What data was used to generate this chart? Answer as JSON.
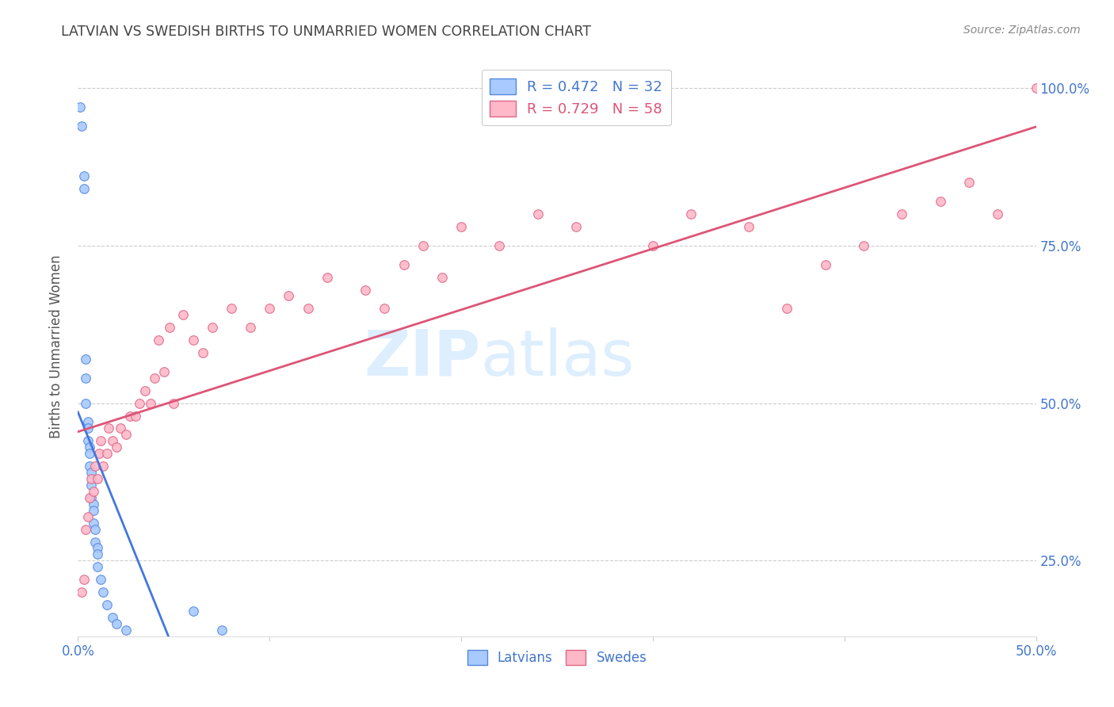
{
  "title": "LATVIAN VS SWEDISH BIRTHS TO UNMARRIED WOMEN CORRELATION CHART",
  "source": "Source: ZipAtlas.com",
  "ylabel": "Births to Unmarried Women",
  "xlim": [
    0.0,
    0.5
  ],
  "ylim": [
    0.13,
    1.05
  ],
  "latvian_x": [
    0.001,
    0.002,
    0.003,
    0.003,
    0.004,
    0.004,
    0.004,
    0.005,
    0.005,
    0.005,
    0.006,
    0.006,
    0.006,
    0.007,
    0.007,
    0.007,
    0.008,
    0.008,
    0.008,
    0.009,
    0.009,
    0.01,
    0.01,
    0.01,
    0.012,
    0.013,
    0.015,
    0.018,
    0.02,
    0.025,
    0.06,
    0.075
  ],
  "latvian_y": [
    0.97,
    0.94,
    0.86,
    0.84,
    0.57,
    0.54,
    0.5,
    0.47,
    0.46,
    0.44,
    0.43,
    0.42,
    0.4,
    0.39,
    0.37,
    0.35,
    0.34,
    0.33,
    0.31,
    0.3,
    0.28,
    0.27,
    0.26,
    0.24,
    0.22,
    0.2,
    0.18,
    0.16,
    0.15,
    0.14,
    0.17,
    0.14
  ],
  "swedish_x": [
    0.002,
    0.003,
    0.004,
    0.005,
    0.006,
    0.007,
    0.008,
    0.009,
    0.01,
    0.011,
    0.012,
    0.013,
    0.015,
    0.016,
    0.018,
    0.02,
    0.022,
    0.025,
    0.027,
    0.03,
    0.032,
    0.035,
    0.038,
    0.04,
    0.042,
    0.045,
    0.048,
    0.05,
    0.055,
    0.06,
    0.065,
    0.07,
    0.08,
    0.09,
    0.1,
    0.11,
    0.12,
    0.13,
    0.15,
    0.16,
    0.17,
    0.18,
    0.19,
    0.2,
    0.22,
    0.24,
    0.26,
    0.3,
    0.32,
    0.35,
    0.37,
    0.39,
    0.41,
    0.43,
    0.45,
    0.465,
    0.48,
    0.5
  ],
  "swedish_y": [
    0.2,
    0.22,
    0.3,
    0.32,
    0.35,
    0.38,
    0.36,
    0.4,
    0.38,
    0.42,
    0.44,
    0.4,
    0.42,
    0.46,
    0.44,
    0.43,
    0.46,
    0.45,
    0.48,
    0.48,
    0.5,
    0.52,
    0.5,
    0.54,
    0.6,
    0.55,
    0.62,
    0.5,
    0.64,
    0.6,
    0.58,
    0.62,
    0.65,
    0.62,
    0.65,
    0.67,
    0.65,
    0.7,
    0.68,
    0.65,
    0.72,
    0.75,
    0.7,
    0.78,
    0.75,
    0.8,
    0.78,
    0.75,
    0.8,
    0.78,
    0.65,
    0.72,
    0.75,
    0.8,
    0.82,
    0.85,
    0.8,
    1.0
  ],
  "latvian_color": "#a8caff",
  "swedish_color": "#ffb8c8",
  "latvian_edge_color": "#5588dd",
  "swedish_edge_color": "#dd6688",
  "latvian_line_color": "#4477dd",
  "swedish_line_color": "#dd5577",
  "latvian_R": 0.472,
  "latvian_N": 32,
  "swedish_R": 0.729,
  "swedish_N": 58,
  "legend_text_blue": "#4477cc",
  "legend_text_pink": "#dd5577",
  "title_color": "#444444",
  "ylabel_color": "#555555",
  "tick_label_color": "#4477cc",
  "grid_color": "#cccccc",
  "watermark_zip": "ZIP",
  "watermark_atlas": "atlas",
  "watermark_color": "#ddeeff",
  "source_color": "#888888",
  "marker_size": 70,
  "background_color": "#ffffff",
  "x_tick_positions": [
    0.0,
    0.1,
    0.2,
    0.3,
    0.4,
    0.5
  ],
  "y_tick_positions": [
    0.25,
    0.5,
    0.75,
    1.0
  ],
  "y_tick_labels": [
    "25.0%",
    "50.0%",
    "75.0%",
    "100.0%"
  ]
}
